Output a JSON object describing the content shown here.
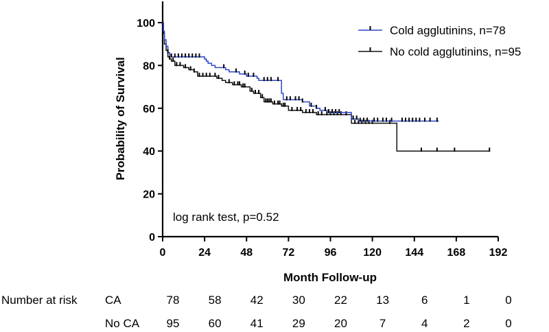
{
  "chart_data": {
    "type": "line",
    "subtype": "kaplan-meier",
    "title": "",
    "xlabel": "Month Follow-up",
    "ylabel": "Probability of Survival",
    "xlim": [
      0,
      192
    ],
    "ylim": [
      0,
      100
    ],
    "xticks": [
      0,
      24,
      48,
      72,
      96,
      120,
      144,
      168,
      192
    ],
    "yticks": [
      0,
      20,
      40,
      60,
      80,
      100
    ],
    "annotation": "log rank test, p=0.52",
    "legend_position": "top-right",
    "series": [
      {
        "name": "Cold agglutinins, n=78",
        "color": "#2a45c8",
        "steps": [
          [
            0,
            100
          ],
          [
            0.5,
            96
          ],
          [
            1,
            92
          ],
          [
            2,
            89
          ],
          [
            3,
            86
          ],
          [
            4,
            85
          ],
          [
            5,
            84
          ],
          [
            22,
            84
          ],
          [
            24,
            83
          ],
          [
            25,
            82
          ],
          [
            26,
            81
          ],
          [
            28,
            80
          ],
          [
            30,
            79
          ],
          [
            34,
            79
          ],
          [
            36,
            78
          ],
          [
            38,
            77
          ],
          [
            40,
            77
          ],
          [
            44,
            76
          ],
          [
            48,
            75
          ],
          [
            53,
            75
          ],
          [
            54,
            74
          ],
          [
            55,
            73
          ],
          [
            65,
            73
          ],
          [
            68,
            67
          ],
          [
            69,
            64
          ],
          [
            80,
            63
          ],
          [
            84,
            61
          ],
          [
            88,
            60
          ],
          [
            90,
            59
          ],
          [
            95,
            58
          ],
          [
            108,
            55
          ],
          [
            112,
            54
          ],
          [
            158,
            54
          ]
        ],
        "censors": [
          3,
          5,
          7,
          9,
          11,
          13,
          15,
          17,
          19,
          21,
          35,
          42,
          47,
          49,
          52,
          58,
          60,
          62,
          66,
          71,
          73,
          76,
          78,
          80,
          85,
          88,
          93,
          95,
          97,
          99,
          101,
          109,
          111,
          113,
          115,
          117,
          121,
          123,
          126,
          128,
          131,
          137,
          139,
          141,
          143,
          145,
          147,
          150,
          153,
          157
        ]
      },
      {
        "name": "No cold agglutinins, n=95",
        "color": "#111111",
        "steps": [
          [
            0,
            100
          ],
          [
            0.5,
            95
          ],
          [
            1,
            90
          ],
          [
            2,
            87
          ],
          [
            3,
            84
          ],
          [
            4,
            83
          ],
          [
            5,
            82
          ],
          [
            7,
            80
          ],
          [
            12,
            79
          ],
          [
            15,
            78
          ],
          [
            18,
            77
          ],
          [
            20,
            75
          ],
          [
            31,
            74
          ],
          [
            34,
            73
          ],
          [
            36,
            72
          ],
          [
            40,
            71
          ],
          [
            45,
            70
          ],
          [
            50,
            68
          ],
          [
            52,
            67
          ],
          [
            56,
            65
          ],
          [
            58,
            63
          ],
          [
            63,
            62
          ],
          [
            68,
            61
          ],
          [
            72,
            59
          ],
          [
            80,
            58
          ],
          [
            88,
            57
          ],
          [
            108,
            53
          ],
          [
            133,
            53
          ],
          [
            134,
            40
          ],
          [
            187,
            40
          ]
        ],
        "censors": [
          4,
          6,
          8,
          10,
          13,
          16,
          18,
          21,
          23,
          25,
          27,
          30,
          32,
          38,
          41,
          43,
          44,
          46,
          47,
          51,
          53,
          55,
          57,
          59,
          60,
          61,
          62,
          64,
          66,
          67,
          69,
          70,
          74,
          77,
          79,
          82,
          84,
          86,
          89,
          91,
          94,
          96,
          98,
          100,
          102,
          105,
          110,
          112,
          114,
          116,
          118,
          120,
          130,
          148,
          157,
          167,
          187
        ]
      }
    ],
    "risk_table": {
      "title": "Number at risk",
      "times": [
        0,
        24,
        48,
        72,
        96,
        120,
        144,
        168,
        192
      ],
      "rows": [
        {
          "label": "CA",
          "values": [
            "78",
            "58",
            "42",
            "30",
            "22",
            "13",
            "6",
            "1",
            "0"
          ]
        },
        {
          "label": "No CA",
          "values": [
            "95",
            "60",
            "41",
            "29",
            "20",
            "7",
            "4",
            "2",
            "0"
          ]
        }
      ]
    }
  }
}
